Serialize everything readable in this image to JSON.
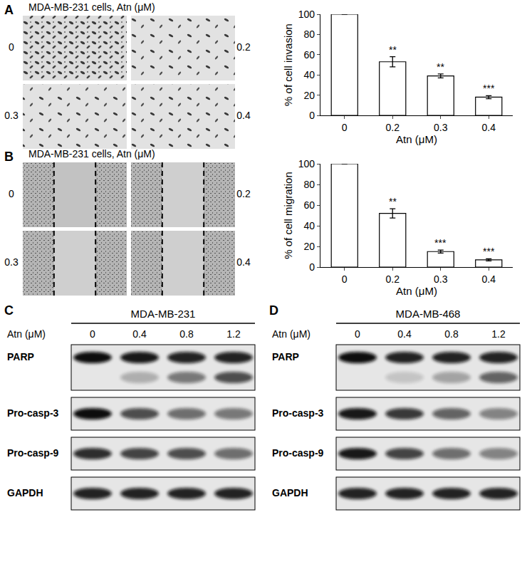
{
  "panel_labels": [
    "A",
    "B",
    "C",
    "D"
  ],
  "image_panels": [
    {
      "title": "MDA-MB-231 cells, Atn (μM)",
      "doses": [
        "0",
        "0.2",
        "0.3",
        "0.4"
      ]
    },
    {
      "title": "MDA-MB-231 cells, Atn (μM)",
      "doses": [
        "0",
        "0.2",
        "0.3",
        "0.4"
      ]
    }
  ],
  "chart_data": [
    {
      "type": "bar",
      "categories": [
        "0",
        "0.2",
        "0.3",
        "0.4"
      ],
      "values": [
        100,
        53,
        39,
        18
      ],
      "errors": [
        0,
        5,
        2,
        1.5
      ],
      "significance": [
        null,
        "**",
        "**",
        "***"
      ],
      "color": "#ffffff",
      "xlabel": "Atn (μM)",
      "ylabel": "% of cell invasion",
      "ylim": [
        0,
        100
      ],
      "yticks": [
        0,
        20,
        40,
        60,
        80,
        100
      ],
      "grid": false
    },
    {
      "type": "bar",
      "categories": [
        "0",
        "0.2",
        "0.3",
        "0.4"
      ],
      "values": [
        100,
        52,
        15,
        7
      ],
      "errors": [
        0,
        4.5,
        1.5,
        1
      ],
      "significance": [
        null,
        "**",
        "***",
        "***"
      ],
      "color": "#ffffff",
      "xlabel": "Atn (μM)",
      "ylabel": "% of cell migration",
      "ylim": [
        0,
        100
      ],
      "yticks": [
        0,
        20,
        40,
        60,
        80,
        100
      ],
      "grid": false
    }
  ],
  "blots": [
    {
      "title": "MDA-MB-231",
      "dose_label": "Atn  (μM)",
      "doses": [
        "0",
        "0.4",
        "0.8",
        "1.2"
      ],
      "rows": [
        {
          "name": "PARP",
          "bands": [
            [
              1,
              0.95,
              0.9,
              0.9
            ],
            [
              0,
              0.25,
              0.5,
              0.7
            ]
          ]
        },
        {
          "name": "Pro-casp-3",
          "bands": [
            [
              1,
              0.7,
              0.55,
              0.5
            ]
          ]
        },
        {
          "name": "Pro-casp-9",
          "bands": [
            [
              0.85,
              0.75,
              0.7,
              0.55
            ]
          ]
        },
        {
          "name": "GAPDH",
          "bands": [
            [
              0.9,
              0.9,
              0.9,
              0.9
            ]
          ]
        }
      ]
    },
    {
      "title": "MDA-MB-468",
      "dose_label": "Atn  (μM)",
      "doses": [
        "0",
        "0.4",
        "0.8",
        "1.2"
      ],
      "rows": [
        {
          "name": "PARP",
          "bands": [
            [
              1,
              0.9,
              0.9,
              0.9
            ],
            [
              0,
              0.15,
              0.3,
              0.6
            ]
          ]
        },
        {
          "name": "Pro-casp-3",
          "bands": [
            [
              0.95,
              0.8,
              0.6,
              0.45
            ]
          ]
        },
        {
          "name": "Pro-casp-9",
          "bands": [
            [
              0.95,
              0.75,
              0.55,
              0.45
            ]
          ]
        },
        {
          "name": "GAPDH",
          "bands": [
            [
              0.9,
              0.9,
              0.9,
              0.9
            ]
          ]
        }
      ]
    }
  ]
}
